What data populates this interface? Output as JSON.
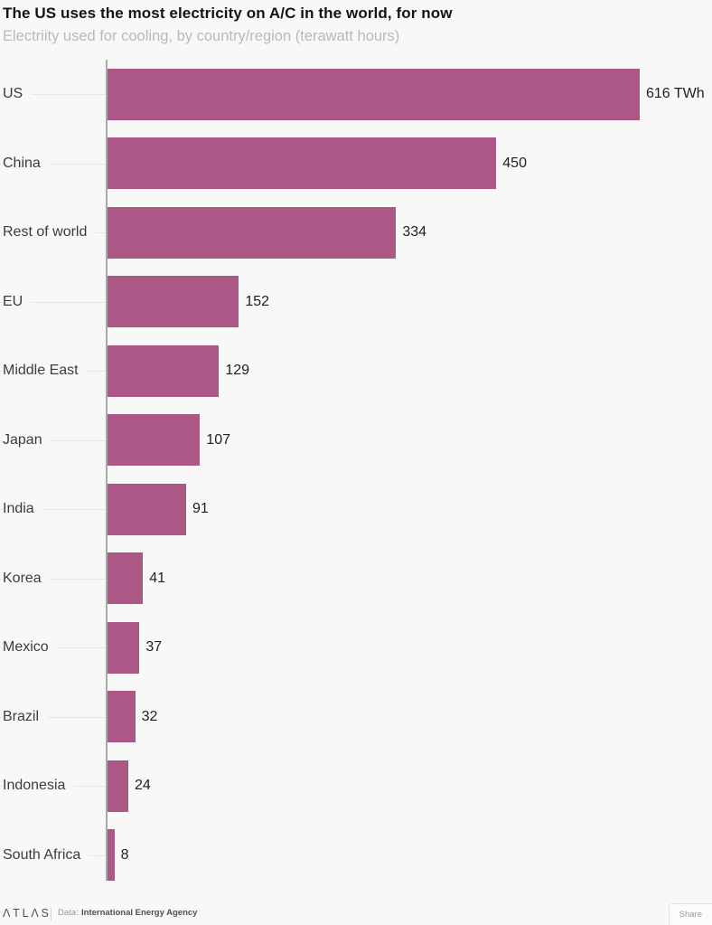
{
  "title": "The US uses the most electricity on A/C in the world, for now",
  "subtitle": "Electriity used for cooling, by country/region (terawatt hours)",
  "chart_data": {
    "type": "bar",
    "orientation": "horizontal",
    "title": "The US uses the most electricity on A/C in the world, for now",
    "subtitle": "Electriity used for cooling, by country/region (terawatt hours)",
    "xlabel": "",
    "ylabel": "",
    "unit": "TWh",
    "xlim": [
      0,
      616
    ],
    "grid": false,
    "legend": false,
    "bar_color": "#ac5786",
    "axis_color": "#a9a9a9",
    "categories": [
      "US",
      "China",
      "Rest of world",
      "EU",
      "Middle East",
      "Japan",
      "India",
      "Korea",
      "Mexico",
      "Brazil",
      "Indonesia",
      "South Africa"
    ],
    "values": [
      616,
      450,
      334,
      152,
      129,
      107,
      91,
      41,
      37,
      32,
      24,
      8
    ],
    "value_labels": [
      "616 TWh",
      "450",
      "334",
      "152",
      "129",
      "107",
      "91",
      "41",
      "37",
      "32",
      "24",
      "8"
    ]
  },
  "footer": {
    "logo": "ΛTLΛS",
    "data_prefix": "Data:",
    "source": "International Energy Agency",
    "share_label": "Share"
  },
  "colors": {
    "background": "#f8f8f8",
    "bar": "#ac5786",
    "axis": "#a9a9a9",
    "tick_line": "#e7e7e7",
    "title_text": "#141414",
    "subtitle_text": "#b9b9b9",
    "category_text": "#3c3c3c",
    "value_text": "#1f1f1f"
  }
}
